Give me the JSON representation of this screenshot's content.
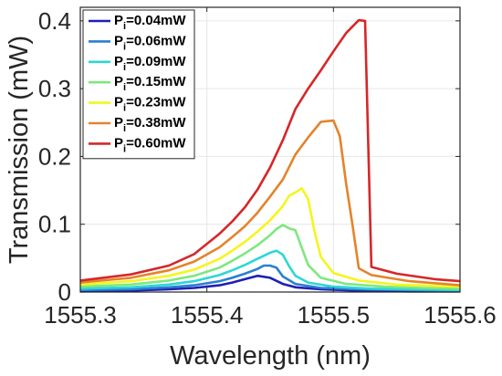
{
  "chart_data": {
    "type": "line",
    "title": "",
    "xlabel": "Wavelength (nm)",
    "ylabel": "Transmission (mW)",
    "xlim": [
      1555.3,
      1555.6
    ],
    "ylim": [
      0,
      0.42
    ],
    "xticks": [
      1555.3,
      1555.4,
      1555.5,
      1555.6
    ],
    "xtick_labels": [
      "1555.3",
      "1555.4",
      "1555.5",
      "1555.6"
    ],
    "yticks": [
      0,
      0.1,
      0.2,
      0.3,
      0.4
    ],
    "ytick_labels": [
      "0",
      "0.1",
      "0.2",
      "0.3",
      "0.4"
    ],
    "grid": true,
    "legend_position": "top-left",
    "series": [
      {
        "name": "P_i=0.04mW",
        "label_main": "P",
        "label_sub": "i",
        "label_rest": "=0.04mW",
        "color": "#1f1fb4",
        "x": [
          1555.3,
          1555.34,
          1555.37,
          1555.39,
          1555.41,
          1555.42,
          1555.43,
          1555.44,
          1555.45,
          1555.46,
          1555.47,
          1555.49,
          1555.52,
          1555.56,
          1555.6
        ],
        "y": [
          0.001,
          0.002,
          0.004,
          0.006,
          0.01,
          0.014,
          0.019,
          0.024,
          0.021,
          0.012,
          0.007,
          0.004,
          0.002,
          0.001,
          0.001
        ]
      },
      {
        "name": "P_i=0.06mW",
        "label_main": "P",
        "label_sub": "i",
        "label_rest": "=0.06mW",
        "color": "#2a7fd1",
        "x": [
          1555.3,
          1555.34,
          1555.37,
          1555.39,
          1555.41,
          1555.42,
          1555.43,
          1555.44,
          1555.445,
          1555.45,
          1555.455,
          1555.46,
          1555.47,
          1555.49,
          1555.52,
          1555.56,
          1555.6
        ],
        "y": [
          0.003,
          0.004,
          0.007,
          0.01,
          0.016,
          0.021,
          0.027,
          0.034,
          0.039,
          0.039,
          0.036,
          0.023,
          0.012,
          0.006,
          0.004,
          0.003,
          0.002
        ]
      },
      {
        "name": "P_i=0.09mW",
        "label_main": "P",
        "label_sub": "i",
        "label_rest": "=0.09mW",
        "color": "#2fd6d6",
        "x": [
          1555.3,
          1555.34,
          1555.37,
          1555.39,
          1555.41,
          1555.42,
          1555.43,
          1555.44,
          1555.45,
          1555.455,
          1555.46,
          1555.465,
          1555.47,
          1555.48,
          1555.5,
          1555.53,
          1555.56,
          1555.6
        ],
        "y": [
          0.005,
          0.007,
          0.011,
          0.016,
          0.025,
          0.032,
          0.04,
          0.049,
          0.058,
          0.061,
          0.055,
          0.038,
          0.024,
          0.014,
          0.008,
          0.005,
          0.004,
          0.003
        ]
      },
      {
        "name": "P_i=0.15mW",
        "label_main": "P",
        "label_sub": "i",
        "label_rest": "=0.15mW",
        "color": "#7ee87e",
        "x": [
          1555.3,
          1555.34,
          1555.37,
          1555.39,
          1555.41,
          1555.42,
          1555.43,
          1555.44,
          1555.45,
          1555.455,
          1555.46,
          1555.465,
          1555.47,
          1555.475,
          1555.48,
          1555.49,
          1555.51,
          1555.54,
          1555.57,
          1555.6
        ],
        "y": [
          0.008,
          0.011,
          0.017,
          0.024,
          0.036,
          0.046,
          0.057,
          0.069,
          0.084,
          0.093,
          0.099,
          0.094,
          0.091,
          0.065,
          0.04,
          0.021,
          0.012,
          0.008,
          0.006,
          0.005
        ]
      },
      {
        "name": "P_i=0.23mW",
        "label_main": "P",
        "label_sub": "i",
        "label_rest": "=0.23mW",
        "color": "#f5f51e",
        "x": [
          1555.3,
          1555.34,
          1555.37,
          1555.39,
          1555.41,
          1555.42,
          1555.43,
          1555.44,
          1555.45,
          1555.46,
          1555.465,
          1555.47,
          1555.475,
          1555.48,
          1555.485,
          1555.49,
          1555.5,
          1555.52,
          1555.55,
          1555.58,
          1555.6
        ],
        "y": [
          0.011,
          0.016,
          0.024,
          0.033,
          0.049,
          0.061,
          0.074,
          0.089,
          0.106,
          0.127,
          0.142,
          0.147,
          0.153,
          0.137,
          0.09,
          0.052,
          0.028,
          0.017,
          0.011,
          0.009,
          0.008
        ]
      },
      {
        "name": "P_i=0.38mW",
        "label_main": "P",
        "label_sub": "i",
        "label_rest": "=0.38mW",
        "color": "#e5832b",
        "x": [
          1555.3,
          1555.34,
          1555.37,
          1555.39,
          1555.41,
          1555.42,
          1555.43,
          1555.44,
          1555.45,
          1555.46,
          1555.47,
          1555.48,
          1555.49,
          1555.5,
          1555.505,
          1555.51,
          1555.515,
          1555.52,
          1555.53,
          1555.56,
          1555.6
        ],
        "y": [
          0.014,
          0.021,
          0.032,
          0.045,
          0.066,
          0.081,
          0.097,
          0.117,
          0.141,
          0.166,
          0.203,
          0.228,
          0.251,
          0.253,
          0.23,
          0.16,
          0.1,
          0.035,
          0.025,
          0.016,
          0.01
        ]
      },
      {
        "name": "P_i=0.60mW",
        "label_main": "P",
        "label_sub": "i",
        "label_rest": "=0.60mW",
        "color": "#d62728",
        "x": [
          1555.3,
          1555.34,
          1555.37,
          1555.39,
          1555.41,
          1555.42,
          1555.43,
          1555.44,
          1555.45,
          1555.46,
          1555.47,
          1555.48,
          1555.49,
          1555.5,
          1555.51,
          1555.52,
          1555.525,
          1555.53,
          1555.55,
          1555.58,
          1555.6
        ],
        "y": [
          0.017,
          0.026,
          0.039,
          0.056,
          0.086,
          0.104,
          0.125,
          0.151,
          0.184,
          0.224,
          0.27,
          0.3,
          0.327,
          0.355,
          0.382,
          0.401,
          0.4,
          0.037,
          0.027,
          0.019,
          0.016
        ]
      }
    ]
  }
}
